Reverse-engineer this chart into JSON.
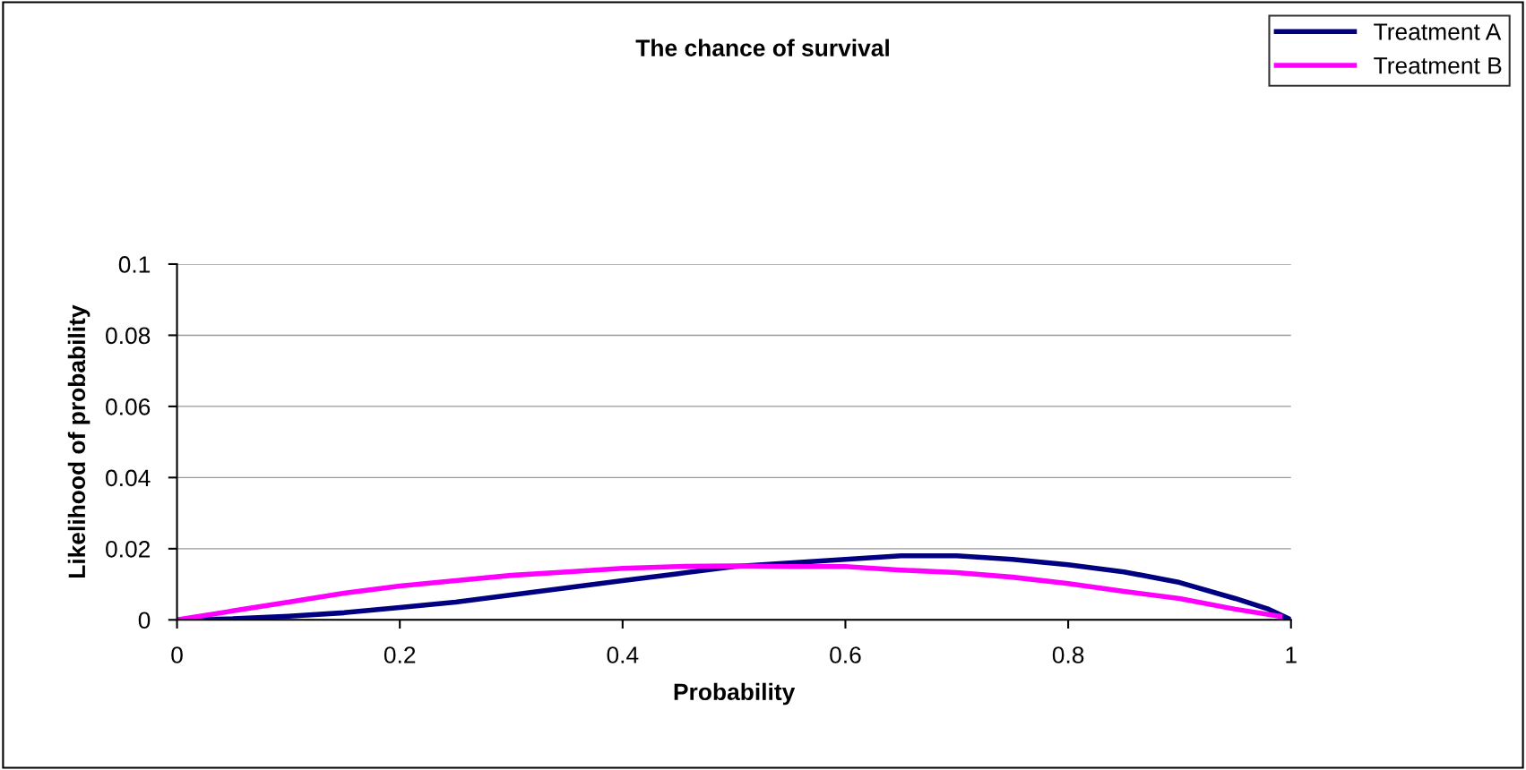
{
  "chart_data": {
    "type": "line",
    "title": "The chance of survival",
    "xlabel": "Probability",
    "ylabel": "Likelihood of probability",
    "series": [
      {
        "name": "Treatment A",
        "color": "#000080",
        "x": [
          0,
          0.05,
          0.1,
          0.15,
          0.2,
          0.25,
          0.3,
          0.35,
          0.4,
          0.45,
          0.5,
          0.55,
          0.6,
          0.65,
          0.7,
          0.75,
          0.8,
          0.85,
          0.9,
          0.95,
          0.98,
          1
        ],
        "values": [
          0,
          0.0003,
          0.001,
          0.002,
          0.0035,
          0.005,
          0.007,
          0.009,
          0.011,
          0.013,
          0.015,
          0.016,
          0.017,
          0.018,
          0.018,
          0.017,
          0.0155,
          0.0135,
          0.0105,
          0.006,
          0.003,
          0
        ]
      },
      {
        "name": "Treatment B",
        "color": "#ff00ff",
        "x": [
          0,
          0.05,
          0.1,
          0.15,
          0.2,
          0.25,
          0.3,
          0.35,
          0.4,
          0.45,
          0.5,
          0.55,
          0.6,
          0.65,
          0.7,
          0.75,
          0.8,
          0.85,
          0.9,
          0.95,
          0.99
        ],
        "values": [
          0,
          0.0025,
          0.005,
          0.0075,
          0.0095,
          0.011,
          0.0125,
          0.0135,
          0.0145,
          0.015,
          0.0152,
          0.015,
          0.015,
          0.014,
          0.0133,
          0.012,
          0.0102,
          0.008,
          0.006,
          0.003,
          0.001
        ]
      }
    ],
    "xlim": [
      0,
      1
    ],
    "xticks": [
      0,
      0.2,
      0.4,
      0.6,
      0.8,
      1
    ],
    "ylim": [
      0,
      0.1
    ],
    "yticks": [
      0,
      0.02,
      0.04,
      0.06,
      0.08,
      0.1
    ],
    "grid": "y",
    "legend": "top right",
    "marker": "none",
    "line_style": "solid"
  }
}
